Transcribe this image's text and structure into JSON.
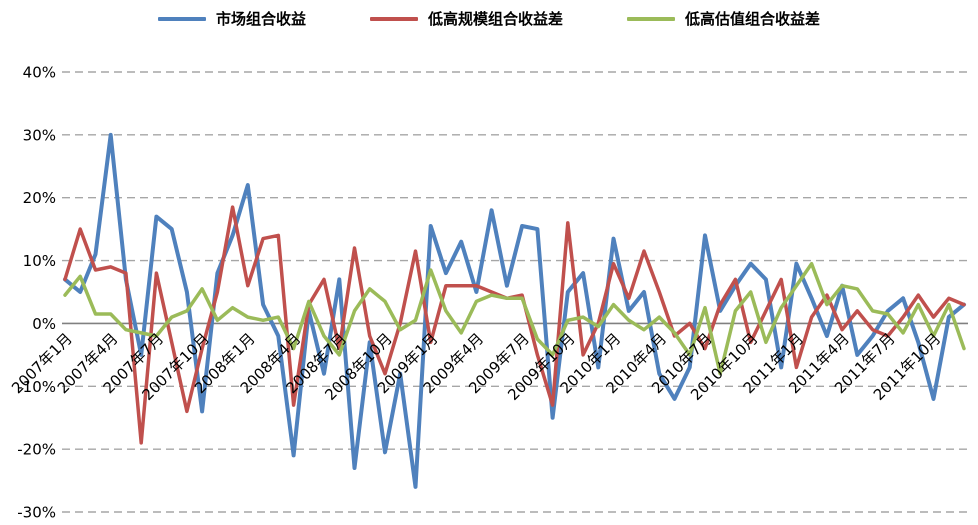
{
  "chart_data": {
    "type": "line",
    "title": "",
    "legend_position": "top",
    "grid": "dashed-horizontal",
    "ylim": [
      -30,
      40
    ],
    "y_ticks": [
      40,
      30,
      20,
      10,
      0,
      -10,
      -20,
      -30
    ],
    "y_tick_labels": [
      "40%",
      "30%",
      "20%",
      "10%",
      "0%",
      "-10%",
      "-20%",
      "-30%"
    ],
    "x_tick_every": 3,
    "x_tick_labels": [
      "2007年1月",
      "2007年4月",
      "2007年7月",
      "2007年10月",
      "2008年1月",
      "2008年4月",
      "2008年7月",
      "2008年10月",
      "2009年1月",
      "2009年4月",
      "2009年7月",
      "2009年10月",
      "2010年1月",
      "2010年4月",
      "2010年7月",
      "2010年10月",
      "2011年1月",
      "2011年4月",
      "2011年7月",
      "2011年10月"
    ],
    "series": [
      {
        "name": "市场组合收益",
        "color": "#4F81BD",
        "values": [
          7,
          5,
          11,
          30,
          7,
          -5,
          17,
          15,
          5,
          -14,
          8,
          14,
          22,
          3,
          -2,
          -21,
          2,
          -8,
          7,
          -23,
          -3,
          -20.5,
          -8,
          -26,
          15.5,
          8,
          13,
          5,
          18,
          6,
          15.5,
          15,
          -15,
          5,
          8,
          -7,
          13.5,
          2,
          5,
          -8,
          -12,
          -7,
          14,
          2,
          6,
          9.5,
          7,
          -7,
          9.5,
          4,
          -2,
          6,
          -5,
          -2,
          2,
          4,
          -3,
          -12,
          1,
          3
        ]
      },
      {
        "name": "低高规模组合收益差",
        "color": "#C0504D",
        "values": [
          7,
          15,
          8.5,
          9,
          8,
          -19,
          8,
          -3,
          -14,
          -4,
          5,
          18.5,
          6,
          13.5,
          14,
          -13,
          3,
          7,
          -4,
          12,
          -2,
          -8,
          0,
          11.5,
          -3,
          6,
          6,
          6,
          5,
          4,
          4.5,
          -5,
          -13,
          16,
          -5,
          0,
          9.5,
          4,
          11.5,
          5,
          -2,
          0,
          -4,
          3,
          7,
          -3,
          2,
          7,
          -7,
          1,
          4.5,
          -1,
          2,
          -1,
          -2,
          1,
          4.5,
          1,
          4,
          3
        ]
      },
      {
        "name": "低高估值组合收益差",
        "color": "#9BBB59",
        "values": [
          4.5,
          7.5,
          1.5,
          1.5,
          -1,
          -1.5,
          -2,
          1,
          2,
          5.5,
          0.5,
          2.5,
          1,
          0.5,
          1,
          -4,
          3.5,
          -2,
          -5,
          2,
          5.5,
          3.5,
          -1,
          0.5,
          8.5,
          2,
          -1.5,
          3.5,
          4.5,
          4,
          4,
          -2.5,
          -5,
          0.5,
          1,
          -0.5,
          3,
          0.5,
          -1,
          1,
          -1.5,
          -5,
          2.5,
          -8,
          2,
          5,
          -3,
          2.5,
          6,
          9.5,
          3,
          6,
          5.5,
          2,
          1.5,
          -1.5,
          3,
          -2,
          3,
          -4
        ]
      }
    ],
    "colors": {
      "gridline": "#a6a6a6",
      "zero_axis": "#808080",
      "text": "#000000"
    }
  }
}
